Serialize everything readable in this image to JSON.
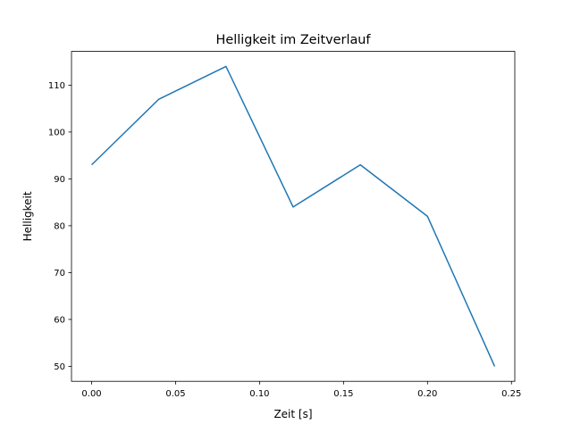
{
  "chart_data": {
    "type": "line",
    "title": "Helligkeit im Zeitverlauf",
    "xlabel": "Zeit [s]",
    "ylabel": "Helligkeit",
    "xlim": [
      -0.012,
      0.252
    ],
    "ylim": [
      46.8,
      117.2
    ],
    "xticks": [
      0.0,
      0.05,
      0.1,
      0.15,
      0.2,
      0.25
    ],
    "xtick_labels": [
      "0.00",
      "0.05",
      "0.10",
      "0.15",
      "0.20",
      "0.25"
    ],
    "yticks": [
      50,
      60,
      70,
      80,
      90,
      100,
      110
    ],
    "ytick_labels": [
      "50",
      "60",
      "70",
      "80",
      "90",
      "100",
      "110"
    ],
    "grid": false,
    "series": [
      {
        "name": "Helligkeit",
        "color": "#1f77b4",
        "x": [
          0.0,
          0.04,
          0.08,
          0.12,
          0.16,
          0.2,
          0.24
        ],
        "y": [
          93,
          107,
          114,
          84,
          93,
          82,
          50
        ]
      }
    ]
  }
}
